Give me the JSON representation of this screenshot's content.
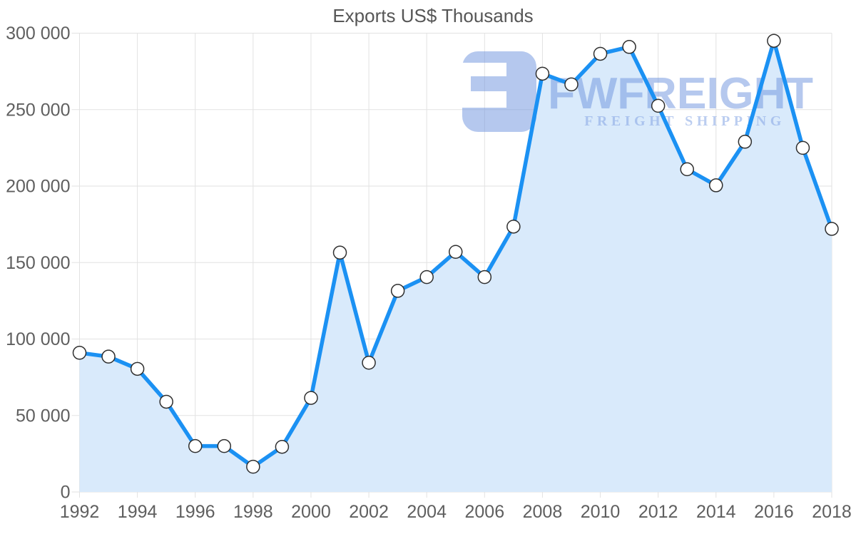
{
  "page": {
    "background": "#ffffff"
  },
  "chart_data": {
    "type": "area",
    "title": "Exports US$ Thousands",
    "series_name": "Exports US$ Thousands",
    "x": [
      1992,
      1993,
      1994,
      1995,
      1996,
      1997,
      1998,
      1999,
      2000,
      2001,
      2002,
      2003,
      2004,
      2005,
      2006,
      2007,
      2008,
      2009,
      2010,
      2011,
      2012,
      2013,
      2014,
      2015,
      2016,
      2017,
      2018
    ],
    "values": [
      91000,
      88500,
      80500,
      59000,
      30000,
      30000,
      16500,
      29500,
      61500,
      156500,
      84500,
      131500,
      140500,
      157000,
      140500,
      173500,
      273500,
      266500,
      286500,
      291000,
      252500,
      211000,
      200500,
      229000,
      295000,
      225000,
      172000
    ],
    "xlim": [
      1992,
      2018
    ],
    "ylim": [
      0,
      300000
    ],
    "xticks": [
      1992,
      1994,
      1996,
      1998,
      2000,
      2002,
      2004,
      2006,
      2008,
      2010,
      2012,
      2014,
      2016,
      2018
    ],
    "yticks": [
      0,
      50000,
      100000,
      150000,
      200000,
      250000,
      300000
    ],
    "ytick_labels": [
      "0",
      "50 000",
      "100 000",
      "150 000",
      "200 000",
      "250 000",
      "300 000"
    ],
    "grid": true,
    "legend": false,
    "marker": "circle"
  },
  "watermark": {
    "brand": "FWFREIGHT",
    "tagline": "FREIGHT SHIPPING"
  },
  "colors": {
    "line": "#1B91F3",
    "area_fill": "#D9EAFB",
    "marker_fill": "#FFFFFF",
    "marker_stroke": "#2F2F2F",
    "grid": "#E2E2E2",
    "axis_label": "#5F5F5F",
    "title": "#565656",
    "watermark_main": "#6D93DF",
    "watermark_tagline": "#85A5E5"
  }
}
